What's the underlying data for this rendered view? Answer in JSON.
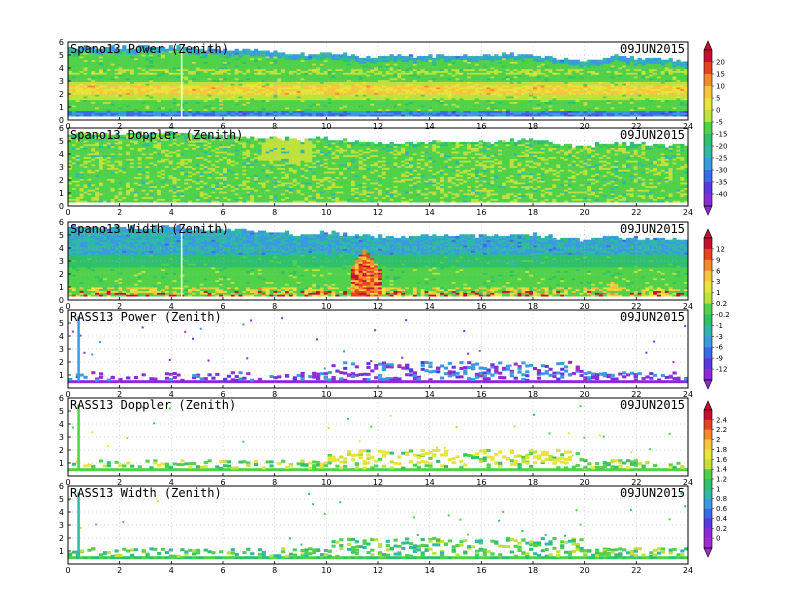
{
  "chart_data": [
    {
      "type": "heatmap",
      "title": "Spano13 Power (Zenith)",
      "date": "09JUN2015",
      "xlim": [
        0,
        24
      ],
      "ylim": [
        0,
        6
      ],
      "xticks": [
        0,
        2,
        4,
        6,
        8,
        10,
        12,
        14,
        16,
        18,
        20,
        22,
        24
      ],
      "yticks": [
        0,
        1,
        2,
        3,
        4,
        5,
        6
      ],
      "colorbar": "power",
      "top_height": [
        [
          0,
          5.5
        ],
        [
          2,
          5.5
        ],
        [
          4,
          5.6
        ],
        [
          6,
          5.3
        ],
        [
          8,
          5.2
        ],
        [
          9,
          5.0
        ],
        [
          10,
          5.2
        ],
        [
          11,
          4.9
        ],
        [
          12,
          4.8
        ],
        [
          14,
          4.9
        ],
        [
          16,
          4.9
        ],
        [
          18,
          5.0
        ],
        [
          20,
          4.5
        ],
        [
          21,
          4.8
        ],
        [
          22,
          4.7
        ],
        [
          24,
          4.6
        ]
      ],
      "bands": [
        {
          "center": 2.2,
          "width": 0.6,
          "level": 10
        },
        {
          "center": 3.5,
          "width": 0.4,
          "level": 5
        }
      ]
    },
    {
      "type": "heatmap",
      "title": "Spano13 Doppler (Zenith)",
      "date": "09JUN2015",
      "xlim": [
        0,
        24
      ],
      "ylim": [
        0,
        6
      ],
      "xticks": [
        0,
        2,
        4,
        6,
        8,
        10,
        12,
        14,
        16,
        18,
        20,
        22,
        24
      ],
      "yticks": [
        0,
        1,
        2,
        3,
        4,
        5,
        6
      ],
      "colorbar": "power",
      "top_height": [
        [
          0,
          5.5
        ],
        [
          2,
          5.5
        ],
        [
          4,
          5.6
        ],
        [
          6,
          5.3
        ],
        [
          8,
          5.2
        ],
        [
          9,
          5.0
        ],
        [
          10,
          5.2
        ],
        [
          11,
          4.9
        ],
        [
          12,
          4.8
        ],
        [
          14,
          4.9
        ],
        [
          16,
          4.9
        ],
        [
          18,
          5.0
        ],
        [
          20,
          4.5
        ],
        [
          21,
          4.8
        ],
        [
          22,
          4.7
        ],
        [
          24,
          4.6
        ]
      ],
      "bands": [
        {
          "center": 2.5,
          "width": 1.5,
          "level": 0
        }
      ]
    },
    {
      "type": "heatmap",
      "title": "Spano13 Width (Zenith)",
      "date": "09JUN2015",
      "xlim": [
        0,
        24
      ],
      "ylim": [
        0,
        6
      ],
      "xticks": [
        0,
        2,
        4,
        6,
        8,
        10,
        12,
        14,
        16,
        18,
        20,
        22,
        24
      ],
      "yticks": [
        0,
        1,
        2,
        3,
        4,
        5,
        6
      ],
      "colorbar": "width",
      "top_height": [
        [
          0,
          5.5
        ],
        [
          2,
          5.5
        ],
        [
          4,
          5.6
        ],
        [
          6,
          5.3
        ],
        [
          8,
          5.2
        ],
        [
          9,
          5.0
        ],
        [
          10,
          5.2
        ],
        [
          11,
          4.9
        ],
        [
          12,
          4.8
        ],
        [
          14,
          4.9
        ],
        [
          16,
          4.9
        ],
        [
          18,
          5.0
        ],
        [
          20,
          4.5
        ],
        [
          21,
          4.8
        ],
        [
          22,
          4.7
        ],
        [
          24,
          4.6
        ]
      ],
      "bands": [
        {
          "center": 0.6,
          "width": 0.5,
          "level": 3
        },
        {
          "center": 2.0,
          "width": 1.0,
          "level": 0.2
        }
      ],
      "features": [
        {
          "x": 11.5,
          "y_top": 4.0,
          "level": 9
        },
        {
          "x": 21.0,
          "y_top": 1.4,
          "level": 3
        }
      ]
    },
    {
      "type": "heatmap",
      "title": "RASS13 Power (Zenith)",
      "date": "09JUN2015",
      "xlim": [
        0,
        24
      ],
      "ylim": [
        0,
        6
      ],
      "xticks": [
        0,
        2,
        4,
        6,
        8,
        10,
        12,
        14,
        16,
        18,
        20,
        22,
        24
      ],
      "yticks": [
        1,
        2,
        3,
        4,
        5,
        6
      ],
      "colorbar": "width",
      "bands": [
        {
          "center": 0.55,
          "width": 0.2,
          "level": -12
        },
        {
          "center": 0.9,
          "width": 0.4,
          "level": -9
        },
        {
          "center": 1.4,
          "width": 0.6,
          "level": -6
        }
      ],
      "spike": {
        "x": 0.4,
        "y_top": 5.5
      }
    },
    {
      "type": "heatmap",
      "title": "RASS13 Doppler (Zenith)",
      "date": "09JUN2015",
      "xlim": [
        0,
        24
      ],
      "ylim": [
        0,
        6
      ],
      "xticks": [
        0,
        2,
        4,
        6,
        8,
        10,
        12,
        14,
        16,
        18,
        20,
        22,
        24
      ],
      "yticks": [
        1,
        2,
        3,
        4,
        5,
        6
      ],
      "colorbar": "doppler",
      "bands": [
        {
          "center": 0.5,
          "width": 0.15,
          "level": 1.2
        },
        {
          "center": 1.1,
          "width": 0.8,
          "level": 1.8
        }
      ],
      "spike": {
        "x": 0.4,
        "y_top": 5.5
      }
    },
    {
      "type": "heatmap",
      "title": "RASS13 Width (Zenith)",
      "date": "09JUN2015",
      "xlim": [
        0,
        24
      ],
      "ylim": [
        0,
        6
      ],
      "xticks": [
        0,
        2,
        4,
        6,
        8,
        10,
        12,
        14,
        16,
        18,
        20,
        22,
        24
      ],
      "yticks": [
        1,
        2,
        3,
        4,
        5,
        6
      ],
      "colorbar": "doppler",
      "bands": [
        {
          "center": 0.5,
          "width": 0.15,
          "level": 1.0
        },
        {
          "center": 1.1,
          "width": 0.8,
          "level": 1.2
        }
      ],
      "spike": {
        "x": 0.4,
        "y_top": 5.5
      }
    }
  ],
  "colorbars": {
    "power": {
      "labels": [
        "20",
        "15",
        "10",
        "5",
        "0",
        "-5",
        "-15",
        "-20",
        "-25",
        "-30",
        "-35",
        "-40"
      ],
      "colors": [
        "#c8102e",
        "#e8421e",
        "#f58a2a",
        "#f8c63a",
        "#e8e43a",
        "#bfe23a",
        "#4fd24a",
        "#2fc06a",
        "#2fb8a8",
        "#3a9ae0",
        "#3a6ae8",
        "#5a3ae0",
        "#8a2ad8"
      ]
    },
    "width": {
      "labels": [
        "12",
        "9",
        "6",
        "3",
        "1",
        "0.2",
        "-0.2",
        "-1",
        "-3",
        "-6",
        "-9",
        "-12"
      ],
      "colors": [
        "#c8102e",
        "#e8421e",
        "#f58a2a",
        "#f8c63a",
        "#e8e43a",
        "#bfe23a",
        "#4fd24a",
        "#2fc06a",
        "#2fb8a8",
        "#3a9ae0",
        "#3a6ae8",
        "#5a3ae0",
        "#8a2ad8"
      ]
    },
    "doppler": {
      "labels": [
        "2.4",
        "2.2",
        "2",
        "1.8",
        "1.6",
        "1.4",
        "1.2",
        "1",
        "0.8",
        "0.6",
        "0.4",
        "0.2",
        "0"
      ],
      "colors": [
        "#c8102e",
        "#e8421e",
        "#f58a2a",
        "#f8c63a",
        "#e8e43a",
        "#bfe23a",
        "#4fd24a",
        "#2fc06a",
        "#2fb8a8",
        "#3a9ae0",
        "#3a6ae8",
        "#5a3ae0",
        "#8a2ad8",
        "#a02ad0"
      ]
    }
  }
}
